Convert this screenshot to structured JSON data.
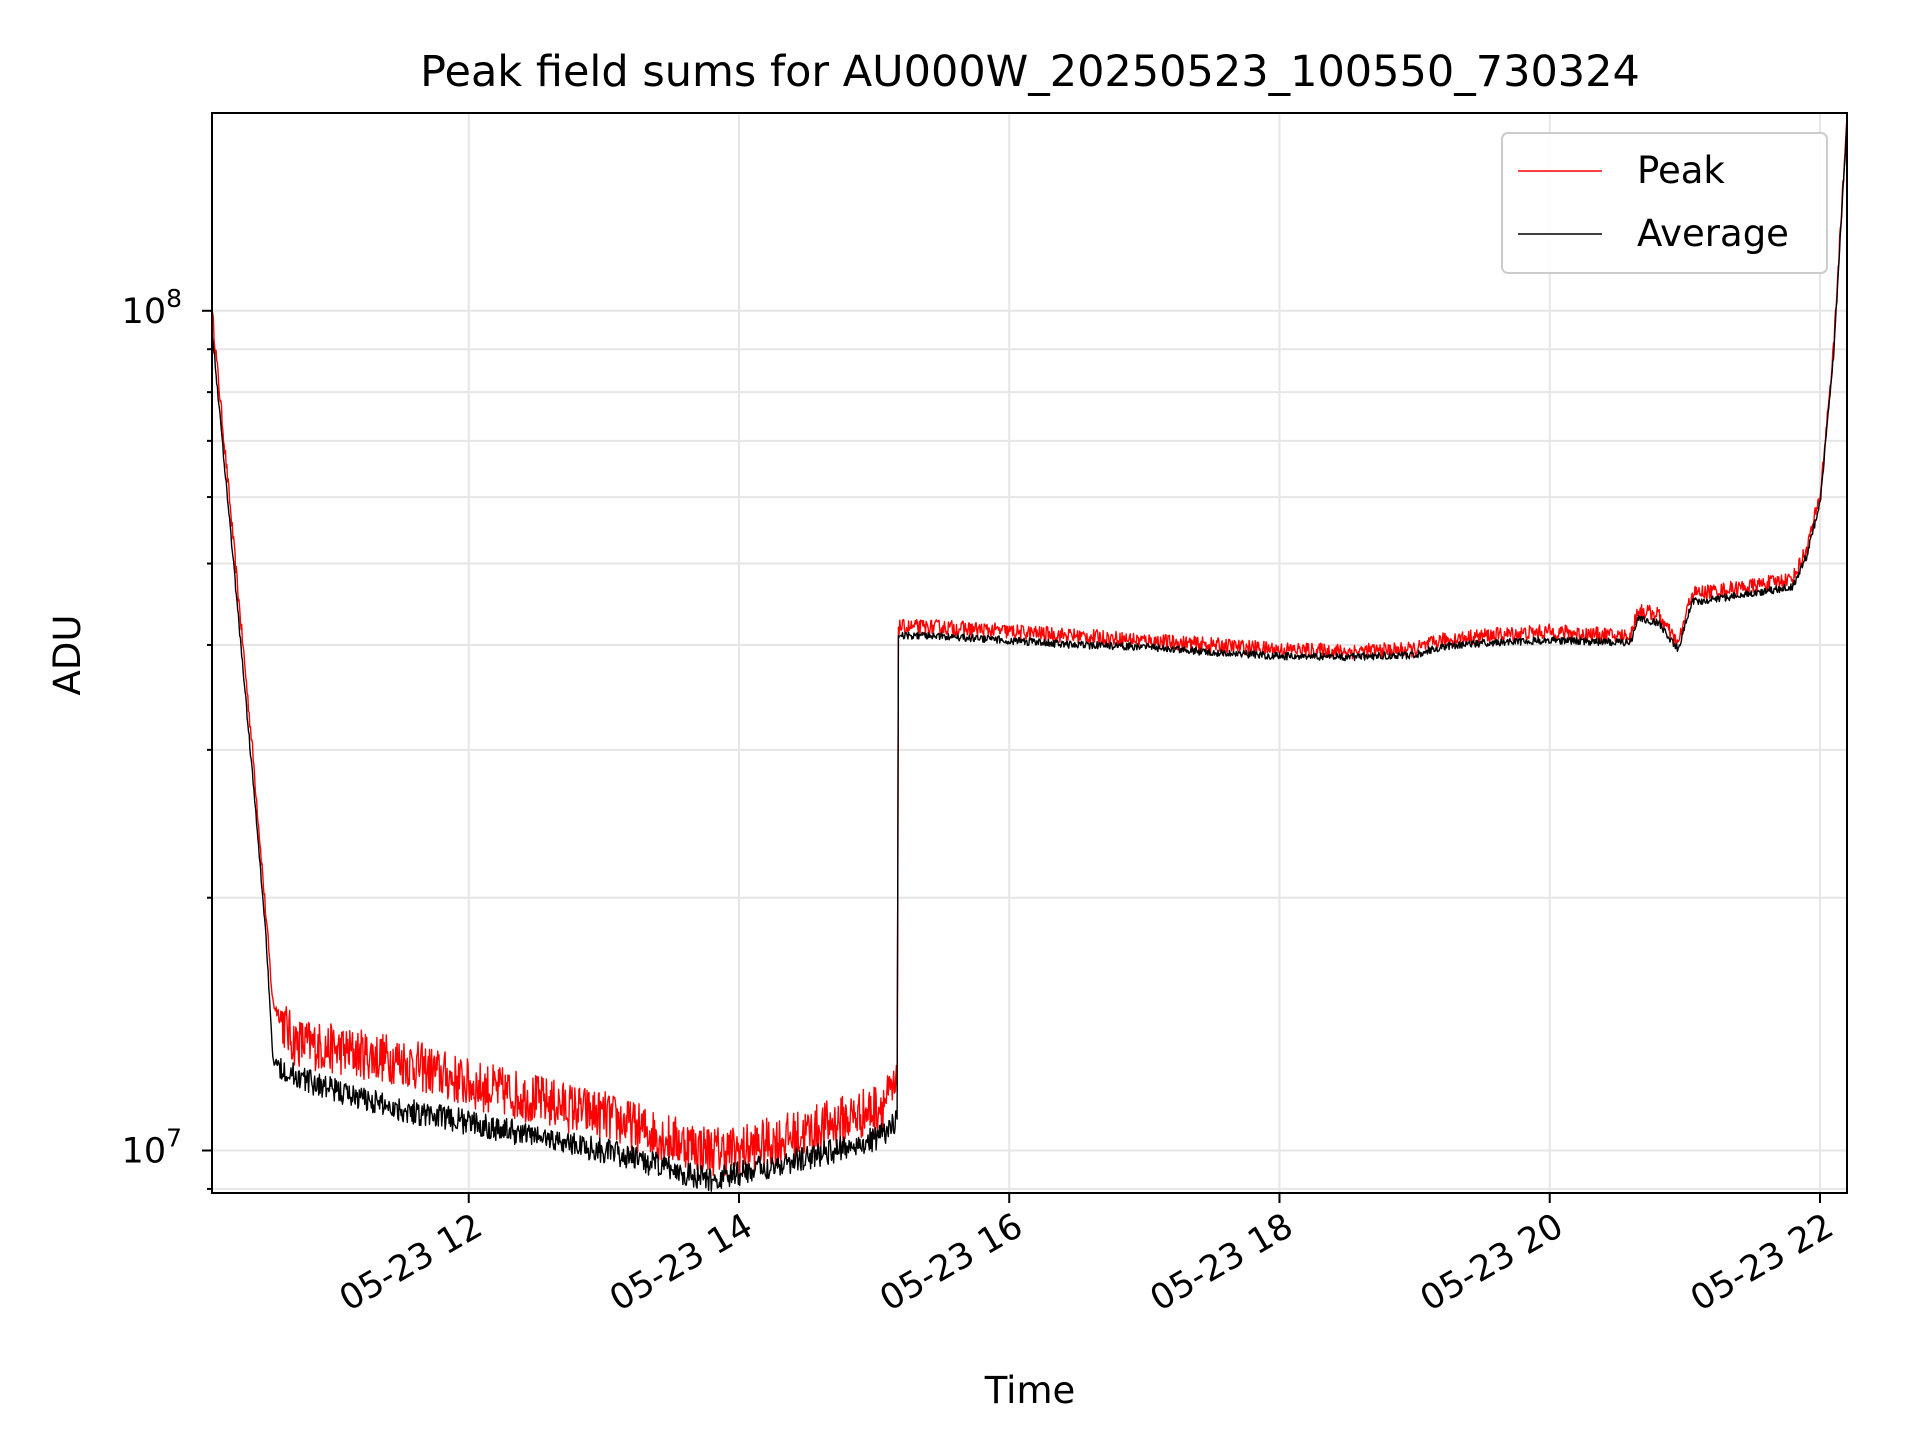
{
  "chart_data": {
    "type": "line",
    "title": "Peak field sums for AU000W_20250523_100550_730324",
    "xlabel": "Time",
    "ylabel": "ADU",
    "yscale": "log",
    "grid": true,
    "legend_position": "top-right",
    "xlim": [
      10.1,
      22.2
    ],
    "ylim": [
      8900000,
      172000000
    ],
    "x_ticks": [
      {
        "value": 12,
        "label": "05-23 12"
      },
      {
        "value": 14,
        "label": "05-23 14"
      },
      {
        "value": 16,
        "label": "05-23 16"
      },
      {
        "value": 18,
        "label": "05-23 18"
      },
      {
        "value": 20,
        "label": "05-23 20"
      },
      {
        "value": 22,
        "label": "05-23 22"
      }
    ],
    "y_ticks": [
      {
        "value": 10000000,
        "base": "10",
        "exp": "7"
      },
      {
        "value": 100000000,
        "base": "10",
        "exp": "8"
      }
    ],
    "x_unit": "hour of 2025-05-23",
    "series": [
      {
        "name": "Peak",
        "color": "#ff0000",
        "x": [
          10.1,
          10.25,
          10.4,
          10.5,
          10.55,
          10.7,
          11.0,
          11.5,
          12.0,
          12.5,
          13.0,
          13.5,
          13.8,
          14.0,
          14.5,
          15.0,
          15.17,
          15.18,
          15.5,
          16.0,
          16.5,
          17.0,
          17.5,
          18.0,
          18.5,
          19.0,
          19.2,
          19.5,
          20.0,
          20.5,
          20.6,
          20.65,
          20.8,
          20.95,
          21.05,
          21.5,
          21.8,
          21.9,
          22.0,
          22.1,
          22.2
        ],
        "y": [
          100000000,
          55000000,
          30000000,
          19000000,
          15000000,
          13500000,
          13200000,
          12800000,
          12000000,
          11500000,
          11000000,
          10300000,
          10000000,
          10000000,
          10500000,
          11200000,
          11800000,
          42000000,
          42000000,
          41500000,
          41000000,
          40500000,
          40000000,
          39500000,
          39300000,
          39500000,
          40500000,
          41000000,
          41500000,
          41000000,
          41000000,
          44000000,
          43500000,
          40000000,
          46000000,
          47000000,
          48000000,
          52000000,
          60000000,
          90000000,
          170000000
        ]
      },
      {
        "name": "Average",
        "color": "#000000",
        "x": [
          10.1,
          10.25,
          10.4,
          10.5,
          10.55,
          10.7,
          11.0,
          11.5,
          12.0,
          12.5,
          13.0,
          13.5,
          13.8,
          14.0,
          14.5,
          15.0,
          15.17,
          15.18,
          15.5,
          16.0,
          16.5,
          17.0,
          17.5,
          18.0,
          18.5,
          19.0,
          19.2,
          19.5,
          20.0,
          20.5,
          20.6,
          20.65,
          20.8,
          20.95,
          21.05,
          21.5,
          21.8,
          21.9,
          22.0,
          22.1,
          22.2
        ],
        "y": [
          95000000,
          52000000,
          28000000,
          18000000,
          12800000,
          12300000,
          11800000,
          11200000,
          10800000,
          10400000,
          10000000,
          9500000,
          9200000,
          9400000,
          9800000,
          10300000,
          10800000,
          41000000,
          41000000,
          40500000,
          40000000,
          39800000,
          39200000,
          38800000,
          38700000,
          38900000,
          39800000,
          40200000,
          40500000,
          40300000,
          40300000,
          43000000,
          42500000,
          39500000,
          45000000,
          46000000,
          47000000,
          51000000,
          59000000,
          88000000,
          168000000
        ]
      }
    ]
  }
}
